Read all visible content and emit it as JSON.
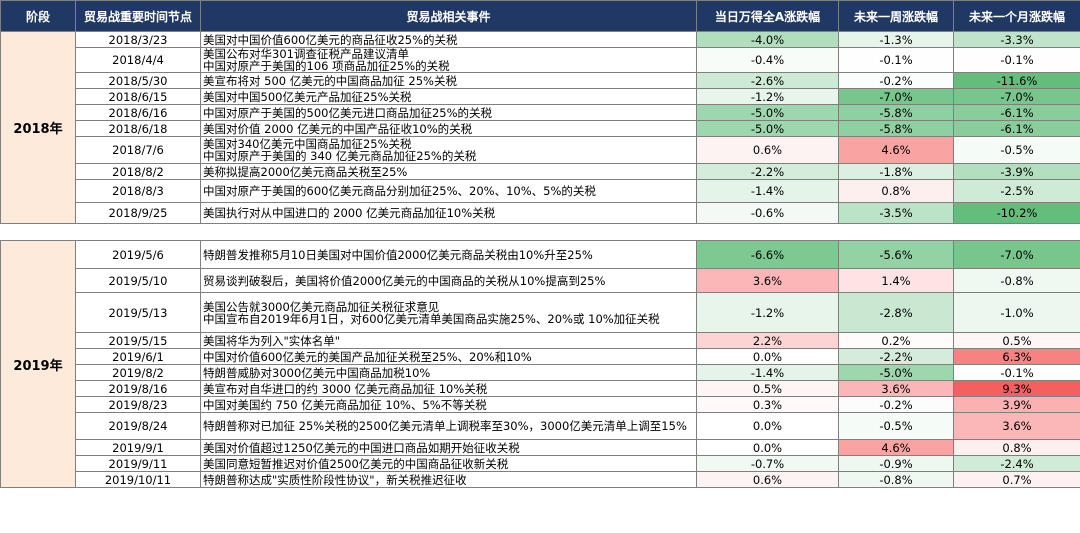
{
  "headers": [
    "阶段",
    "贸易战重要时间节点",
    "贸易战相关事件",
    "当日万得全A涨跌幅",
    "未来一周涨跌幅",
    "未来一个月涨跌幅"
  ],
  "colors": {
    "header_bg": "#1f3864",
    "year_bg": "#fdeada",
    "pos": [
      246,
      95,
      95
    ],
    "neg": [
      99,
      190,
      123
    ]
  },
  "groups": [
    {
      "year": "2018年",
      "rows": [
        {
          "date": "2018/3/23",
          "event": "美国对中国价值600亿美元的商品征收25%的关税",
          "d": -4.0,
          "w": -1.3,
          "m": -3.3
        },
        {
          "date": "2018/4/4",
          "event": "美国公布对华301调查征税产品建议清单\n中国对原产于美国的106 项商品加征25%的关税",
          "d": -0.4,
          "w": -0.1,
          "m": -0.1
        },
        {
          "date": "2018/5/30",
          "event": "美宣布将对 500 亿美元的中国商品加征 25%关税",
          "d": -2.6,
          "w": -0.2,
          "m": -11.6
        },
        {
          "date": "2018/6/15",
          "event": "美国对中国500亿美元产品加征25%关税",
          "d": -1.2,
          "w": -7.0,
          "m": -7.0
        },
        {
          "date": "2018/6/16",
          "event": "中国对原产于美国的500亿美元进口商品加征25%的关税",
          "d": -5.0,
          "w": -5.8,
          "m": -6.1
        },
        {
          "date": "2018/6/18",
          "event": "美国对价值 2000 亿美元的中国产品征收10%的关税",
          "d": -5.0,
          "w": -5.8,
          "m": -6.1
        },
        {
          "date": "2018/7/6",
          "event": "美国对340亿美元中国商品加征25%关税\n中国对原产于美国的 340 亿美元商品加征25%的关税",
          "d": 0.6,
          "w": 4.6,
          "m": -0.5
        },
        {
          "date": "2018/8/2",
          "event": "美称拟提高2000亿美元商品关税至25%",
          "d": -2.2,
          "w": -1.8,
          "m": -3.9
        },
        {
          "date": "2018/8/3",
          "event": "中国对原产于美国的600亿美元商品分别加征25%、20%、10%、5%的关税",
          "d": -1.4,
          "w": 0.8,
          "m": -2.5
        },
        {
          "date": "2018/9/25",
          "event": "美国执行对从中国进口的 2000 亿美元商品加征10%关税",
          "d": -0.6,
          "w": -3.5,
          "m": -10.2
        }
      ]
    },
    {
      "year": "2019年",
      "rows": [
        {
          "date": "2019/5/6",
          "event": "特朗普发推称5月10日美国对中国价值2000亿美元商品关税由10%升至25%",
          "d": -6.6,
          "w": -5.6,
          "m": -7.0
        },
        {
          "date": "2019/5/10",
          "event": "贸易谈判破裂后，美国将价值2000亿美元的中国商品的关税从10%提高到25%",
          "d": 3.6,
          "w": 1.4,
          "m": -0.8
        },
        {
          "date": "2019/5/13",
          "event": "美国公告就3000亿美元商品加征关税征求意见\n中国宣布自2019年6月1日，对600亿美元清单美国商品实施25%、20%或 10%加征关税",
          "d": -1.2,
          "w": -2.8,
          "m": -1.0
        },
        {
          "date": "2019/5/15",
          "event": "美国将华为列入\"实体名单\"",
          "d": 2.2,
          "w": 0.2,
          "m": 0.5
        },
        {
          "date": "2019/6/1",
          "event": "中国对价值600亿美元的美国产品加征关税至25%、20%和10%",
          "d": 0.0,
          "w": -2.2,
          "m": 6.3
        },
        {
          "date": "2019/8/2",
          "event": "特朗普威胁对3000亿美元中国商品加税10%",
          "d": -1.4,
          "w": -5.0,
          "m": -0.1
        },
        {
          "date": "2019/8/16",
          "event": "美宣布对自华进口的约 3000 亿美元商品加征 10%关税",
          "d": 0.5,
          "w": 3.6,
          "m": 9.3
        },
        {
          "date": "2019/8/23",
          "event": "中国对美国约 750 亿美元商品加征 10%、5%不等关税",
          "d": 0.3,
          "w": -0.2,
          "m": 3.9
        },
        {
          "date": "2019/8/24",
          "event": "特朗普称对已加征 25%关税的2500亿美元清单上调税率至30%，3000亿美元清单上调至15%",
          "d": 0.0,
          "w": -0.5,
          "m": 3.6
        },
        {
          "date": "2019/9/1",
          "event": "美国对价值超过1250亿美元的中国进口商品如期开始征收关税",
          "d": 0.0,
          "w": 4.6,
          "m": 0.8
        },
        {
          "date": "2019/9/11",
          "event": "美国同意短暂推迟对价值2500亿美元的中国商品征收新关税",
          "d": -0.7,
          "w": -0.9,
          "m": -2.4
        },
        {
          "date": "2019/10/11",
          "event": "特朗普称达成\"实质性阶段性协议\"，新关税推迟征收",
          "d": 0.6,
          "w": -0.8,
          "m": 0.7
        }
      ]
    }
  ]
}
